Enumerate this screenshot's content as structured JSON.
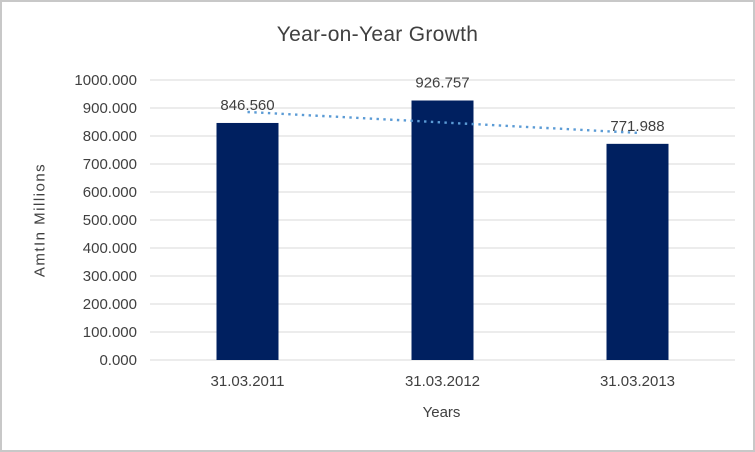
{
  "window": {
    "background_color": "#ffffff",
    "border_color": "#c8c8c8"
  },
  "chart_data": {
    "type": "bar",
    "title": "Year-on-Year Growth",
    "xlabel": "Years",
    "ylabel": "AmtIn Millions",
    "categories": [
      "31.03.2011",
      "31.03.2012",
      "31.03.2013"
    ],
    "values": [
      846.56,
      926.757,
      771.988
    ],
    "value_labels": [
      "846.560",
      "926.757",
      "771.988"
    ],
    "ylim": [
      0,
      1000
    ],
    "yticks": [
      "0.000",
      "100.000",
      "200.000",
      "300.000",
      "400.000",
      "500.000",
      "600.000",
      "700.000",
      "800.000",
      "900.000",
      "1000.000"
    ],
    "grid": "horizontal",
    "legend": "none",
    "bar_color": "#002060",
    "gridline_color": "#d9d9d9",
    "text_color": "#404040",
    "trendline": {
      "type": "linear",
      "style": "dotted",
      "color": "#5b9bd5"
    }
  }
}
